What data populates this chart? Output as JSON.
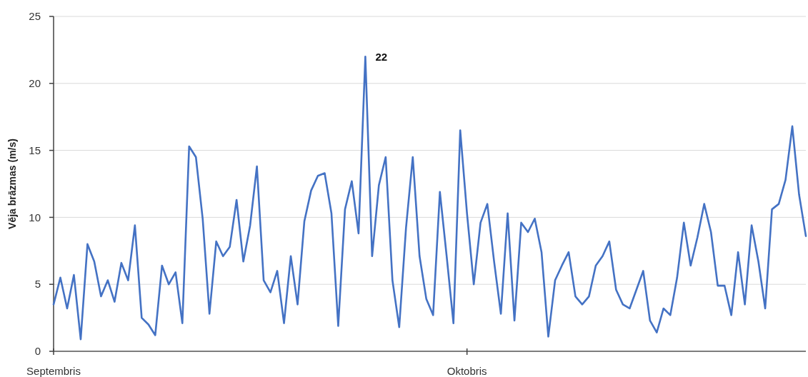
{
  "chart_data": {
    "type": "line",
    "ylabel": "Vēja brāzmas (m/s)",
    "categories": [
      "Septembris",
      null,
      null,
      null,
      null,
      null,
      null,
      null,
      null,
      null,
      null,
      null,
      null,
      null,
      null,
      null,
      null,
      null,
      null,
      null,
      null,
      null,
      null,
      null,
      null,
      null,
      null,
      null,
      null,
      null,
      null,
      null,
      null,
      null,
      null,
      null,
      null,
      null,
      null,
      null,
      null,
      null,
      null,
      null,
      null,
      null,
      null,
      null,
      null,
      null,
      null,
      null,
      null,
      null,
      null,
      null,
      null,
      null,
      null,
      null,
      null,
      "Oktobris",
      null,
      null,
      null,
      null,
      null,
      null,
      null,
      null,
      null,
      null,
      null,
      null,
      null,
      null,
      null,
      null,
      null,
      null,
      null,
      null,
      null,
      null,
      null,
      null,
      null,
      null,
      null,
      null,
      null,
      null,
      null,
      null,
      null,
      null,
      null,
      null,
      null,
      null,
      null,
      null,
      null,
      null,
      null,
      null,
      null,
      null,
      null,
      null,
      null,
      null
    ],
    "series": [
      {
        "color": "#4472c4",
        "values": [
          3.5,
          5.5,
          3.2,
          5.7,
          0.9,
          8.0,
          6.7,
          4.1,
          5.3,
          3.7,
          6.6,
          5.3,
          9.4,
          2.5,
          2.0,
          1.2,
          6.4,
          5.0,
          5.9,
          2.1,
          15.3,
          14.5,
          9.9,
          2.8,
          8.2,
          7.1,
          7.8,
          11.3,
          6.7,
          9.4,
          13.8,
          5.3,
          4.4,
          6.0,
          2.1,
          7.1,
          3.5,
          9.7,
          12.0,
          13.1,
          13.3,
          10.3,
          1.9,
          10.6,
          12.7,
          8.8,
          22,
          7.1,
          12.4,
          14.5,
          5.3,
          1.8,
          9.2,
          14.5,
          7.1,
          3.9,
          2.7,
          11.9,
          7.1,
          2.1,
          16.5,
          10.3,
          5.0,
          9.6,
          11.0,
          6.7,
          2.8,
          10.3,
          2.3,
          9.6,
          8.9,
          9.9,
          7.4,
          1.1,
          5.3,
          6.4,
          7.4,
          4.1,
          3.5,
          4.1,
          6.4,
          7.1,
          8.2,
          4.6,
          3.5,
          3.2,
          4.6,
          6.0,
          2.3,
          1.4,
          3.2,
          2.7,
          5.5,
          9.6,
          6.4,
          8.5,
          11.0,
          8.9,
          4.9,
          4.9,
          2.7,
          7.4,
          3.5,
          9.4,
          6.7,
          3.2,
          10.6,
          11.0,
          12.8,
          16.8,
          11.7,
          8.6
        ]
      }
    ],
    "ylim": [
      0,
      25
    ],
    "yticks": [
      0,
      5,
      10,
      15,
      20,
      25
    ],
    "grid": "y",
    "line_style": "solid",
    "annotations": [
      "22"
    ]
  }
}
